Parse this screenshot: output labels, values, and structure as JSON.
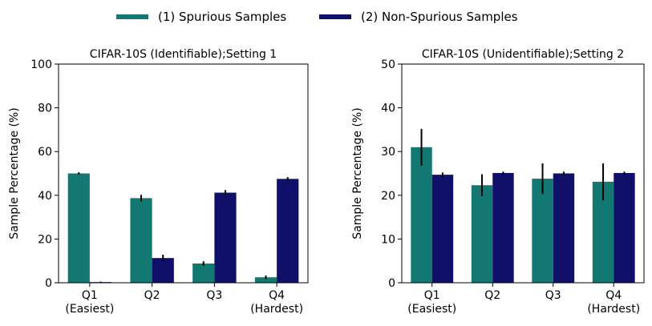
{
  "legend": {
    "items": [
      {
        "label": "(1) Spurious Samples",
        "color": "#147872"
      },
      {
        "label": "(2) Non-Spurious Samples",
        "color": "#10106b"
      }
    ]
  },
  "chart_data": [
    {
      "type": "bar",
      "title": "CIFAR-10S (Identifiable);Setting 1",
      "ylabel": "Sample Percentage  (%)",
      "xlabel": "",
      "ylim": [
        0,
        100
      ],
      "yticks": [
        0,
        20,
        40,
        60,
        80,
        100
      ],
      "categories": [
        "Q1\n(Easiest)",
        "Q2",
        "Q3",
        "Q4\n(Hardest)"
      ],
      "series": [
        {
          "name": "(1) Spurious Samples",
          "color": "#147872",
          "values": [
            50,
            38.7,
            8.8,
            2.5
          ],
          "errors": [
            0.5,
            1.5,
            1.0,
            0.8
          ]
        },
        {
          "name": "(2) Non-Spurious Samples",
          "color": "#10106b",
          "values": [
            0.3,
            11.3,
            41.2,
            47.5
          ],
          "errors": [
            0.2,
            1.5,
            1.2,
            0.8
          ]
        }
      ]
    },
    {
      "type": "bar",
      "title": "CIFAR-10S (Unidentifiable);Setting 2",
      "ylabel": "Sample Percentage  (%)",
      "xlabel": "",
      "ylim": [
        0,
        50
      ],
      "yticks": [
        0,
        10,
        20,
        30,
        40,
        50
      ],
      "categories": [
        "Q1\n(Easiest)",
        "Q2",
        "Q3",
        "Q4\n(Hardest)"
      ],
      "series": [
        {
          "name": "(1) Spurious Samples",
          "color": "#147872",
          "values": [
            31,
            22.3,
            23.8,
            23.1
          ],
          "errors": [
            4.2,
            2.5,
            3.5,
            4.2
          ]
        },
        {
          "name": "(2) Non-Spurious Samples",
          "color": "#10106b",
          "values": [
            24.7,
            25.1,
            25.0,
            25.1
          ],
          "errors": [
            0.5,
            0.3,
            0.4,
            0.3
          ]
        }
      ]
    }
  ]
}
